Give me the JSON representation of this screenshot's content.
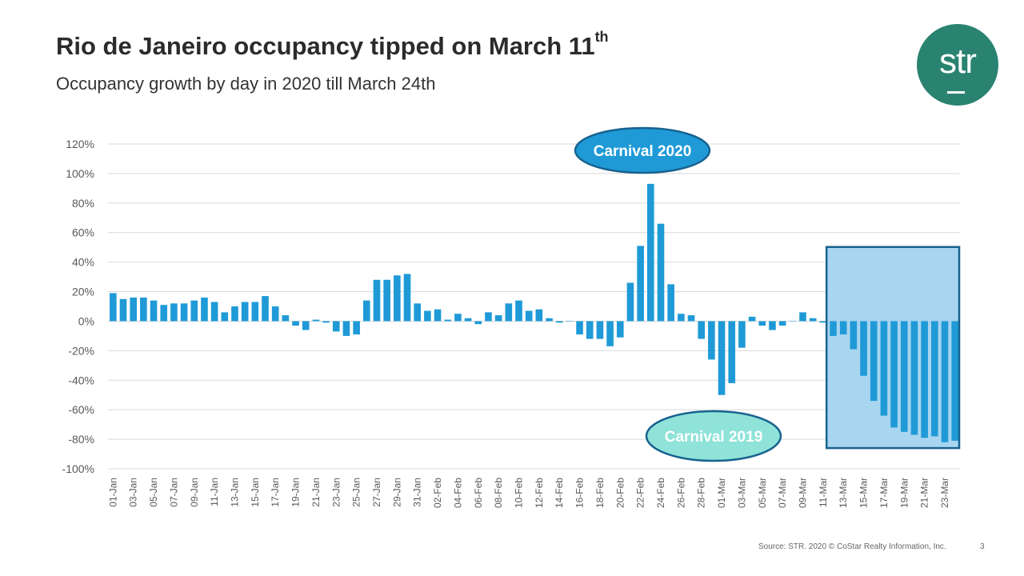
{
  "header": {
    "title": "Rio de Janeiro occupancy tipped on March 11",
    "title_sup": "th",
    "subtitle": "Occupancy growth by day in 2020 till March 24th"
  },
  "logo": {
    "text": "str"
  },
  "footer": {
    "source": "Source: STR. 2020 © CoStar Realty Information, Inc.",
    "page_number": "3"
  },
  "colors": {
    "bar": "#1f9ad7",
    "highlight_fill": "#a8d5ef",
    "highlight_border": "#17628f",
    "callout_2020": "#1f9ad7",
    "callout_2019": "#8fe3d8",
    "logo": "#2a8371"
  },
  "chart_data": {
    "type": "bar",
    "ylim": [
      -100,
      120
    ],
    "yticks": [
      120,
      100,
      80,
      60,
      40,
      20,
      0,
      -20,
      -40,
      -60,
      -80,
      -100
    ],
    "ytick_labels": [
      "120%",
      "100%",
      "80%",
      "60%",
      "40%",
      "20%",
      "0%",
      "-20%",
      "-40%",
      "-60%",
      "-80%",
      "-100%"
    ],
    "categories": [
      "01-Jan",
      "02-Jan",
      "03-Jan",
      "04-Jan",
      "05-Jan",
      "06-Jan",
      "07-Jan",
      "08-Jan",
      "09-Jan",
      "10-Jan",
      "11-Jan",
      "12-Jan",
      "13-Jan",
      "14-Jan",
      "15-Jan",
      "16-Jan",
      "17-Jan",
      "18-Jan",
      "19-Jan",
      "20-Jan",
      "21-Jan",
      "22-Jan",
      "23-Jan",
      "24-Jan",
      "25-Jan",
      "26-Jan",
      "27-Jan",
      "28-Jan",
      "29-Jan",
      "30-Jan",
      "31-Jan",
      "01-Feb",
      "02-Feb",
      "03-Feb",
      "04-Feb",
      "05-Feb",
      "06-Feb",
      "07-Feb",
      "08-Feb",
      "09-Feb",
      "10-Feb",
      "11-Feb",
      "12-Feb",
      "13-Feb",
      "14-Feb",
      "15-Feb",
      "16-Feb",
      "17-Feb",
      "18-Feb",
      "19-Feb",
      "20-Feb",
      "21-Feb",
      "22-Feb",
      "23-Feb",
      "24-Feb",
      "25-Feb",
      "26-Feb",
      "27-Feb",
      "28-Feb",
      "29-Feb",
      "01-Mar",
      "02-Mar",
      "03-Mar",
      "04-Mar",
      "05-Mar",
      "06-Mar",
      "07-Mar",
      "08-Mar",
      "09-Mar",
      "10-Mar",
      "11-Mar",
      "12-Mar",
      "13-Mar",
      "14-Mar",
      "15-Mar",
      "16-Mar",
      "17-Mar",
      "18-Mar",
      "19-Mar",
      "20-Mar",
      "21-Mar",
      "22-Mar",
      "23-Mar",
      "24-Mar"
    ],
    "values": [
      19,
      15,
      16,
      16,
      14,
      11,
      12,
      12,
      14,
      16,
      13,
      6,
      10,
      13,
      13,
      17,
      10,
      4,
      -3,
      -6,
      1,
      -1,
      -7,
      -10,
      -9,
      14,
      28,
      28,
      31,
      32,
      12,
      7,
      8,
      1,
      5,
      2,
      -2,
      6,
      4,
      12,
      14,
      7,
      8,
      2,
      -1,
      0,
      -9,
      -12,
      -12,
      -17,
      -11,
      26,
      51,
      93,
      66,
      25,
      5,
      4,
      -12,
      -26,
      -50,
      -42,
      -18,
      3,
      -3,
      -6,
      -3,
      0,
      6,
      2,
      -1,
      -10,
      -9,
      -19,
      -37,
      -54,
      -64,
      -72,
      -75,
      -77,
      -79,
      -78,
      -82,
      -81
    ],
    "tick_label_every": 2,
    "highlight_range": {
      "start": "12-Mar",
      "end": "24-Mar"
    },
    "annotations": [
      {
        "text": "Carnival 2020"
      },
      {
        "text": "Carnival 2019"
      }
    ]
  }
}
